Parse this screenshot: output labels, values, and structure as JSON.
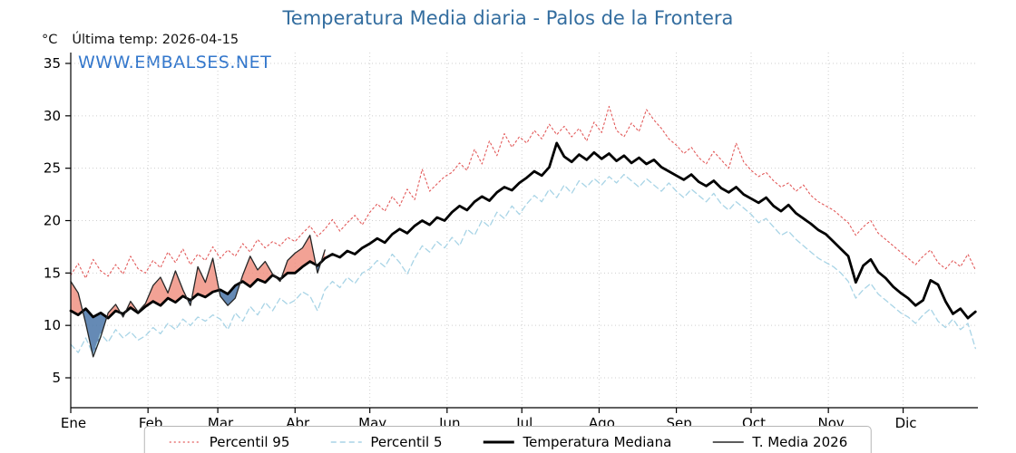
{
  "header": {
    "title": "Temperatura Media diaria - Palos de la Frontera",
    "y_unit": "°C",
    "last_temp": "Última temp: 2026-04-15",
    "watermark": "WWW.EMBALSES.NET"
  },
  "colors": {
    "title": "#336d9f",
    "watermark": "#3377cc",
    "grid": "#cfcfcf"
  },
  "legend": {
    "items": [
      {
        "label": "Percentil 95",
        "color": "#e25a5a",
        "style": "dotted"
      },
      {
        "label": "Percentil 5",
        "color": "#a8d4e6",
        "style": "dashed"
      },
      {
        "label": "Temperatura Mediana",
        "color": "#000000",
        "style": "solid-thick"
      },
      {
        "label": "T. Media 2026",
        "color": "#262626",
        "style": "solid-thin"
      }
    ]
  },
  "chart_data": {
    "type": "line",
    "title": "Temperatura Media diaria - Palos de la Frontera",
    "xlabel": "",
    "ylabel": "°C",
    "ylim": [
      2,
      36.5
    ],
    "yticks": [
      5,
      10,
      15,
      20,
      25,
      30,
      35
    ],
    "grid": true,
    "legend_position": "bottom",
    "x_months": [
      "Ene",
      "Feb",
      "Mar",
      "Abr",
      "May",
      "Jun",
      "Jul",
      "Ago",
      "Sep",
      "Oct",
      "Nov",
      "Dic"
    ],
    "month_start_days": [
      1,
      32,
      60,
      91,
      121,
      152,
      182,
      213,
      244,
      274,
      305,
      335
    ],
    "x_start_day": 1,
    "x_step_days": 3,
    "x_total_days": 365,
    "series": [
      {
        "name": "Percentil 95",
        "color": "#e25a5a",
        "dash": "2 3",
        "width": 1.1,
        "values": [
          14.8,
          15.9,
          14.5,
          16.3,
          15.2,
          14.7,
          15.8,
          14.9,
          16.6,
          15.4,
          15.0,
          16.2,
          15.5,
          17.0,
          16.0,
          17.3,
          15.8,
          16.8,
          16.2,
          17.5,
          16.4,
          17.2,
          16.6,
          17.8,
          17.0,
          18.2,
          17.4,
          18.0,
          17.6,
          18.4,
          18.0,
          18.8,
          19.5,
          18.5,
          19.2,
          20.1,
          19.0,
          19.8,
          20.5,
          19.6,
          20.8,
          21.6,
          20.9,
          22.3,
          21.4,
          23.0,
          22.0,
          24.9,
          22.8,
          23.5,
          24.2,
          24.6,
          25.5,
          24.8,
          26.8,
          25.4,
          27.6,
          26.2,
          28.3,
          27.0,
          28.0,
          27.4,
          28.6,
          27.8,
          29.2,
          28.2,
          29.0,
          28.0,
          28.8,
          27.6,
          29.4,
          28.4,
          30.9,
          28.6,
          28.0,
          29.3,
          28.5,
          30.6,
          29.6,
          28.8,
          27.8,
          27.2,
          26.4,
          27.0,
          26.0,
          25.4,
          26.6,
          25.8,
          25.0,
          27.4,
          25.6,
          24.8,
          24.2,
          24.6,
          23.8,
          23.2,
          23.6,
          22.8,
          23.4,
          22.4,
          21.8,
          21.4,
          21.0,
          20.4,
          19.8,
          18.6,
          19.4,
          20.0,
          18.8,
          18.2,
          17.6,
          17.0,
          16.4,
          15.8,
          16.6,
          17.2,
          16.0,
          15.4,
          16.2,
          15.6,
          16.8,
          15.3
        ]
      },
      {
        "name": "Percentil 5",
        "color": "#a8d4e6",
        "dash": "6 4",
        "width": 1.3,
        "values": [
          8.2,
          7.4,
          8.8,
          7.2,
          9.2,
          8.4,
          9.6,
          8.8,
          9.4,
          8.6,
          9.0,
          9.8,
          9.2,
          10.2,
          9.6,
          10.6,
          10.0,
          10.8,
          10.4,
          11.0,
          10.6,
          9.6,
          11.2,
          10.4,
          11.8,
          11.0,
          12.2,
          11.4,
          12.6,
          12.0,
          12.4,
          13.2,
          12.8,
          11.4,
          13.4,
          14.2,
          13.6,
          14.6,
          14.0,
          15.0,
          15.4,
          16.2,
          15.6,
          16.8,
          16.0,
          14.9,
          16.4,
          17.6,
          17.0,
          18.0,
          17.4,
          18.4,
          17.6,
          19.2,
          18.6,
          20.0,
          19.4,
          20.8,
          20.2,
          21.4,
          20.6,
          21.6,
          22.4,
          21.8,
          23.0,
          22.2,
          23.4,
          22.6,
          23.8,
          23.2,
          24.0,
          23.4,
          24.2,
          23.6,
          24.4,
          23.8,
          23.2,
          24.0,
          23.4,
          22.8,
          23.6,
          22.8,
          22.2,
          23.0,
          22.4,
          21.8,
          22.6,
          21.6,
          21.0,
          21.8,
          21.2,
          20.6,
          19.8,
          20.2,
          19.4,
          18.6,
          19.0,
          18.2,
          17.6,
          17.0,
          16.4,
          16.0,
          15.6,
          15.0,
          14.2,
          12.6,
          13.4,
          14.0,
          13.0,
          12.4,
          11.8,
          11.2,
          10.8,
          10.2,
          11.0,
          11.6,
          10.4,
          9.8,
          10.6,
          9.6,
          10.2,
          7.8
        ]
      },
      {
        "name": "Temperatura Mediana",
        "color": "#000000",
        "dash": null,
        "width": 2.8,
        "values": [
          11.4,
          11.0,
          11.6,
          10.8,
          11.2,
          10.7,
          11.4,
          11.1,
          11.7,
          11.2,
          11.8,
          12.3,
          11.9,
          12.6,
          12.2,
          12.8,
          12.4,
          13.0,
          12.7,
          13.2,
          13.4,
          13.0,
          13.8,
          14.2,
          13.7,
          14.4,
          14.1,
          14.8,
          14.4,
          15.0,
          15.0,
          15.6,
          16.1,
          15.7,
          16.4,
          16.8,
          16.5,
          17.1,
          16.8,
          17.4,
          17.8,
          18.3,
          17.9,
          18.7,
          19.2,
          18.8,
          19.5,
          20.0,
          19.6,
          20.3,
          20.0,
          20.8,
          21.4,
          21.0,
          21.8,
          22.3,
          21.9,
          22.7,
          23.2,
          22.9,
          23.6,
          24.1,
          24.7,
          24.3,
          25.1,
          27.4,
          26.1,
          25.6,
          26.3,
          25.8,
          26.5,
          25.9,
          26.4,
          25.7,
          26.2,
          25.5,
          26.0,
          25.4,
          25.8,
          25.1,
          24.7,
          24.3,
          23.9,
          24.4,
          23.7,
          23.3,
          23.8,
          23.1,
          22.7,
          23.2,
          22.5,
          22.1,
          21.7,
          22.2,
          21.4,
          20.9,
          21.5,
          20.7,
          20.2,
          19.7,
          19.1,
          18.7,
          18.0,
          17.3,
          16.6,
          14.1,
          15.7,
          16.3,
          15.1,
          14.5,
          13.7,
          13.1,
          12.6,
          11.9,
          12.4,
          14.3,
          13.9,
          12.3,
          11.1,
          11.6,
          10.7,
          11.3
        ]
      },
      {
        "name": "T. Media 2026",
        "color": "#262626",
        "dash": null,
        "width": 1.3,
        "values": [
          14.2,
          13.1,
          10.2,
          7.0,
          8.9,
          11.2,
          12.0,
          10.8,
          12.3,
          11.3,
          12.1,
          13.8,
          14.6,
          13.1,
          15.2,
          13.4,
          11.9,
          15.6,
          14.1,
          16.4,
          12.8,
          11.9,
          12.6,
          14.8,
          16.6,
          15.3,
          16.1,
          14.9,
          14.2,
          16.2,
          16.9,
          17.4,
          18.6,
          15.0,
          17.2
        ]
      }
    ],
    "fills": {
      "between": [
        "T. Media 2026",
        "Temperatura Mediana"
      ],
      "above_color": "#ef8b7a",
      "below_color": "#4a76a8"
    }
  }
}
